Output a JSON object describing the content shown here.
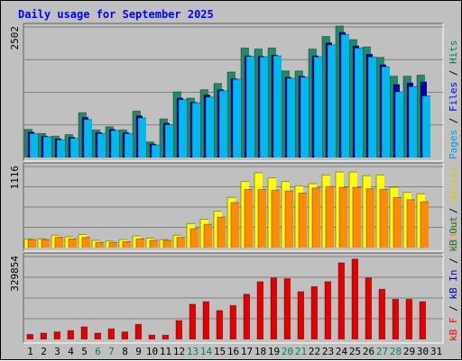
{
  "chart_data": {
    "type": "bar",
    "title": "Daily usage for September 2025",
    "categories": [
      "1",
      "2",
      "3",
      "4",
      "5",
      "6",
      "7",
      "8",
      "9",
      "10",
      "11",
      "12",
      "13",
      "14",
      "15",
      "16",
      "17",
      "18",
      "19",
      "20",
      "21",
      "22",
      "23",
      "24",
      "25",
      "26",
      "27",
      "28",
      "29",
      "30",
      "31"
    ],
    "weekend_days": [
      "6",
      "7",
      "13",
      "14",
      "20",
      "21",
      "27",
      "28"
    ],
    "panels": [
      {
        "max_label": "2502",
        "ymax": 2502,
        "side_labels": [
          {
            "text": "Pages",
            "color": "#00a0d8"
          },
          {
            "text": " / ",
            "color": "#000000"
          },
          {
            "text": "Files",
            "color": "#0000ff"
          },
          {
            "text": " / ",
            "color": "#000000"
          },
          {
            "text": "Hits",
            "color": "#008060"
          }
        ],
        "series": [
          {
            "name": "Hits",
            "color": "#218a68",
            "values": [
              540,
              460,
              410,
              440,
              860,
              530,
              590,
              530,
              890,
              300,
              740,
              1260,
              1140,
              1300,
              1420,
              1640,
              2100,
              2080,
              2100,
              1660,
              1660,
              2080,
              2320,
              2520,
              2260,
              2120,
              1920,
              1560,
              1560,
              1580,
              0
            ]
          },
          {
            "name": "Files",
            "color": "#0000a0",
            "values": [
              490,
              410,
              360,
              390,
              770,
              480,
              540,
              480,
              800,
              260,
              660,
              1140,
              1060,
              1200,
              1300,
              1510,
              1950,
              1940,
              1960,
              1540,
              1560,
              1950,
              2200,
              2400,
              2140,
              1980,
              1780,
              1400,
              1430,
              1450,
              0
            ]
          },
          {
            "name": "Pages",
            "color": "#00b8f0",
            "values": [
              460,
              400,
              340,
              370,
              730,
              460,
              520,
              460,
              760,
              240,
              630,
              1110,
              1050,
              1160,
              1280,
              1500,
              1940,
              1930,
              1950,
              1520,
              1540,
              1930,
              2160,
              2360,
              2100,
              1930,
              1740,
              1260,
              1360,
              1180,
              0
            ]
          }
        ]
      },
      {
        "max_label": "1116",
        "ymax": 1116,
        "side_labels": [
          {
            "text": "Sites",
            "color": "#ff8000"
          },
          {
            "text": " / ",
            "color": "#000000"
          },
          {
            "text": "Visits",
            "color": "#e0c800"
          }
        ],
        "series": [
          {
            "name": "Visits",
            "color": "#ffff00",
            "values": [
              120,
              120,
              170,
              150,
              180,
              100,
              90,
              110,
              160,
              130,
              110,
              170,
              330,
              390,
              500,
              690,
              910,
              1030,
              960,
              910,
              850,
              880,
              1000,
              1040,
              1040,
              990,
              1000,
              830,
              760,
              740,
              0
            ]
          },
          {
            "name": "Sites",
            "color": "#ff8c00",
            "values": [
              110,
              110,
              140,
              120,
              140,
              70,
              70,
              80,
              120,
              100,
              100,
              140,
              260,
              320,
              420,
              620,
              800,
              800,
              790,
              780,
              750,
              820,
              840,
              830,
              830,
              810,
              800,
              690,
              660,
              630,
              0
            ]
          }
        ]
      },
      {
        "max_label": "329854",
        "ymax": 329854,
        "side_labels": [
          {
            "text": "kB F",
            "color": "#ff0000"
          },
          {
            "text": " / ",
            "color": "#000000"
          },
          {
            "text": "kB In",
            "color": "#0000c0"
          },
          {
            "text": " / ",
            "color": "#000000"
          },
          {
            "text": "kB Out",
            "color": "#008060"
          }
        ],
        "series": [
          {
            "name": "kB F",
            "color": "#e00000",
            "values": [
              20000,
              25000,
              30000,
              35000,
              50000,
              25000,
              42000,
              30000,
              60000,
              17000,
              17000,
              75000,
              140000,
              150000,
              115000,
              135000,
              180000,
              230000,
              245000,
              242000,
              190000,
              210000,
              230000,
              305000,
              320000,
              245000,
              200000,
              160000,
              160000,
              150000,
              0
            ]
          }
        ]
      }
    ]
  }
}
